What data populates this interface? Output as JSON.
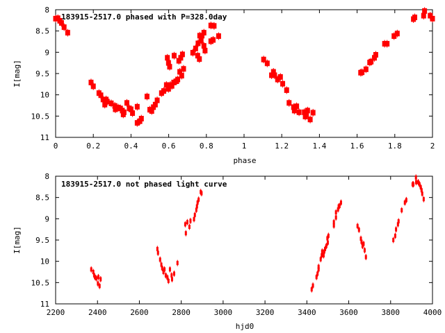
{
  "chart_data": [
    {
      "type": "scatter",
      "title": "183915-2517.0 phased with P=328.0day",
      "xlabel": "phase",
      "ylabel": "I[mag]",
      "xlim": [
        0,
        2
      ],
      "ylim": [
        11,
        8
      ],
      "y_inverted": true,
      "xticks": [
        "0",
        "0.2",
        "0.4",
        "0.6",
        "0.8",
        "1",
        "1.2",
        "1.4",
        "1.6",
        "1.8",
        "2"
      ],
      "xtick_values": [
        0,
        0.2,
        0.4,
        0.6,
        0.8,
        1,
        1.2,
        1.4,
        1.6,
        1.8,
        2
      ],
      "yticks": [
        "8",
        "8.5",
        "9",
        "9.5",
        "10",
        "10.5",
        "11"
      ],
      "ytick_values": [
        8,
        8.5,
        9,
        9.5,
        10,
        10.5,
        11
      ],
      "marker_color": "#ff0000",
      "points": [
        [
          0.0,
          8.21
        ],
        [
          0.012,
          8.2
        ],
        [
          0.022,
          8.26
        ],
        [
          0.031,
          8.31
        ],
        [
          0.045,
          8.41
        ],
        [
          0.064,
          8.54
        ],
        [
          0.188,
          9.71
        ],
        [
          0.2,
          9.8
        ],
        [
          0.23,
          9.96
        ],
        [
          0.24,
          10.01
        ],
        [
          0.252,
          10.11
        ],
        [
          0.261,
          10.23
        ],
        [
          0.268,
          10.11
        ],
        [
          0.274,
          10.16
        ],
        [
          0.295,
          10.2
        ],
        [
          0.314,
          10.26
        ],
        [
          0.317,
          10.34
        ],
        [
          0.332,
          10.3
        ],
        [
          0.344,
          10.32
        ],
        [
          0.354,
          10.37
        ],
        [
          0.359,
          10.46
        ],
        [
          0.363,
          10.41
        ],
        [
          0.378,
          10.19
        ],
        [
          0.391,
          10.32
        ],
        [
          0.4,
          10.34
        ],
        [
          0.408,
          10.43
        ],
        [
          0.433,
          10.28
        ],
        [
          0.433,
          10.66
        ],
        [
          0.447,
          10.62
        ],
        [
          0.455,
          10.56
        ],
        [
          0.485,
          10.04
        ],
        [
          0.5,
          10.35
        ],
        [
          0.51,
          10.38
        ],
        [
          0.519,
          10.29
        ],
        [
          0.529,
          10.23
        ],
        [
          0.539,
          10.13
        ],
        [
          0.562,
          9.96
        ],
        [
          0.574,
          9.91
        ],
        [
          0.588,
          9.77
        ],
        [
          0.593,
          9.13
        ],
        [
          0.599,
          9.25
        ],
        [
          0.605,
          9.34
        ],
        [
          0.599,
          9.86
        ],
        [
          0.609,
          9.77
        ],
        [
          0.617,
          9.79
        ],
        [
          0.627,
          9.71
        ],
        [
          0.642,
          9.68
        ],
        [
          0.648,
          9.64
        ],
        [
          0.629,
          9.08
        ],
        [
          0.654,
          9.2
        ],
        [
          0.664,
          9.13
        ],
        [
          0.673,
          9.05
        ],
        [
          0.659,
          9.46
        ],
        [
          0.669,
          9.55
        ],
        [
          0.679,
          9.39
        ],
        [
          0.728,
          9.01
        ],
        [
          0.743,
          8.91
        ],
        [
          0.756,
          8.79
        ],
        [
          0.754,
          9.08
        ],
        [
          0.763,
          9.16
        ],
        [
          0.765,
          8.61
        ],
        [
          0.772,
          8.72
        ],
        [
          0.777,
          8.61
        ],
        [
          0.787,
          8.54
        ],
        [
          0.787,
          8.85
        ],
        [
          0.793,
          8.96
        ],
        [
          0.824,
          8.37
        ],
        [
          0.824,
          8.74
        ],
        [
          0.836,
          8.71
        ],
        [
          0.841,
          8.38
        ],
        [
          0.865,
          8.62
        ],
        [
          1.104,
          9.17
        ],
        [
          1.123,
          9.26
        ],
        [
          1.156,
          9.46
        ],
        [
          1.146,
          9.54
        ],
        [
          1.162,
          9.54
        ],
        [
          1.178,
          9.64
        ],
        [
          1.193,
          9.58
        ],
        [
          1.205,
          9.74
        ],
        [
          1.226,
          9.89
        ],
        [
          1.239,
          10.19
        ],
        [
          1.263,
          10.29
        ],
        [
          1.267,
          10.37
        ],
        [
          1.279,
          10.27
        ],
        [
          1.292,
          10.41
        ],
        [
          1.32,
          10.41
        ],
        [
          1.325,
          10.51
        ],
        [
          1.331,
          10.46
        ],
        [
          1.337,
          10.37
        ],
        [
          1.351,
          10.58
        ],
        [
          1.366,
          10.42
        ],
        [
          1.619,
          9.48
        ],
        [
          1.626,
          9.47
        ],
        [
          1.647,
          9.4
        ],
        [
          1.667,
          9.24
        ],
        [
          1.674,
          9.22
        ],
        [
          1.692,
          9.13
        ],
        [
          1.699,
          9.06
        ],
        [
          1.746,
          8.8
        ],
        [
          1.759,
          8.8
        ],
        [
          1.796,
          8.62
        ],
        [
          1.813,
          8.56
        ],
        [
          1.899,
          8.22
        ],
        [
          1.906,
          8.18
        ],
        [
          1.953,
          8.14
        ],
        [
          1.958,
          8.03
        ],
        [
          1.988,
          8.14
        ],
        [
          2.0,
          8.21
        ]
      ]
    },
    {
      "type": "scatter",
      "title": "183915-2517.0 not phased light curve",
      "xlabel": "hjd0",
      "ylabel": "I[mag]",
      "xlim": [
        2200,
        4000
      ],
      "ylim": [
        11,
        8
      ],
      "y_inverted": true,
      "xticks": [
        "2200",
        "2400",
        "2600",
        "2800",
        "3000",
        "3200",
        "3400",
        "3600",
        "3800",
        "4000"
      ],
      "xtick_values": [
        2200,
        2400,
        2600,
        2800,
        3000,
        3200,
        3400,
        3600,
        3800,
        4000
      ],
      "yticks": [
        "8",
        "8.5",
        "9",
        "9.5",
        "10",
        "10.5",
        "11"
      ],
      "ytick_values": [
        8,
        8.5,
        9,
        9.5,
        10,
        10.5,
        11
      ],
      "marker_color": "#ff0000",
      "points": [
        [
          2370,
          10.19
        ],
        [
          2380,
          10.25
        ],
        [
          2384,
          10.33
        ],
        [
          2388,
          10.37
        ],
        [
          2394,
          10.4
        ],
        [
          2402,
          10.52
        ],
        [
          2404,
          10.37
        ],
        [
          2410,
          10.58
        ],
        [
          2415,
          10.42
        ],
        [
          2686,
          9.71
        ],
        [
          2689,
          9.8
        ],
        [
          2699,
          9.96
        ],
        [
          2705,
          10.08
        ],
        [
          2709,
          10.16
        ],
        [
          2715,
          10.25
        ],
        [
          2720,
          10.19
        ],
        [
          2726,
          10.33
        ],
        [
          2734,
          10.38
        ],
        [
          2739,
          10.46
        ],
        [
          2746,
          10.19
        ],
        [
          2754,
          10.33
        ],
        [
          2756,
          10.42
        ],
        [
          2766,
          10.29
        ],
        [
          2782,
          10.04
        ],
        [
          2819,
          9.13
        ],
        [
          2822,
          9.34
        ],
        [
          2829,
          9.08
        ],
        [
          2839,
          9.19
        ],
        [
          2844,
          9.05
        ],
        [
          2861,
          9.01
        ],
        [
          2865,
          8.91
        ],
        [
          2872,
          8.79
        ],
        [
          2875,
          8.71
        ],
        [
          2878,
          8.62
        ],
        [
          2883,
          8.55
        ],
        [
          2893,
          8.37
        ],
        [
          2897,
          8.4
        ],
        [
          3423,
          10.66
        ],
        [
          3429,
          10.57
        ],
        [
          3446,
          10.37
        ],
        [
          3451,
          10.29
        ],
        [
          3456,
          10.19
        ],
        [
          3456,
          10.13
        ],
        [
          3466,
          9.95
        ],
        [
          3471,
          9.86
        ],
        [
          3473,
          9.77
        ],
        [
          3480,
          9.86
        ],
        [
          3483,
          9.77
        ],
        [
          3487,
          9.71
        ],
        [
          3493,
          9.64
        ],
        [
          3500,
          9.56
        ],
        [
          3498,
          9.46
        ],
        [
          3503,
          9.4
        ],
        [
          3529,
          9.16
        ],
        [
          3529,
          9.08
        ],
        [
          3539,
          8.97
        ],
        [
          3539,
          8.85
        ],
        [
          3549,
          8.78
        ],
        [
          3552,
          8.71
        ],
        [
          3556,
          8.7
        ],
        [
          3563,
          8.62
        ],
        [
          3642,
          9.17
        ],
        [
          3649,
          9.26
        ],
        [
          3658,
          9.47
        ],
        [
          3661,
          9.54
        ],
        [
          3671,
          9.59
        ],
        [
          3666,
          9.64
        ],
        [
          3676,
          9.74
        ],
        [
          3682,
          9.9
        ],
        [
          3813,
          9.5
        ],
        [
          3822,
          9.4
        ],
        [
          3826,
          9.25
        ],
        [
          3835,
          9.13
        ],
        [
          3838,
          9.06
        ],
        [
          3853,
          8.8
        ],
        [
          3868,
          8.62
        ],
        [
          3875,
          8.56
        ],
        [
          3905,
          8.19
        ],
        [
          3909,
          8.19
        ],
        [
          3921,
          8.03
        ],
        [
          3922,
          8.14
        ],
        [
          3932,
          8.14
        ],
        [
          3938,
          8.19
        ],
        [
          3944,
          8.26
        ],
        [
          3948,
          8.33
        ],
        [
          3951,
          8.41
        ],
        [
          3958,
          8.54
        ]
      ]
    }
  ]
}
